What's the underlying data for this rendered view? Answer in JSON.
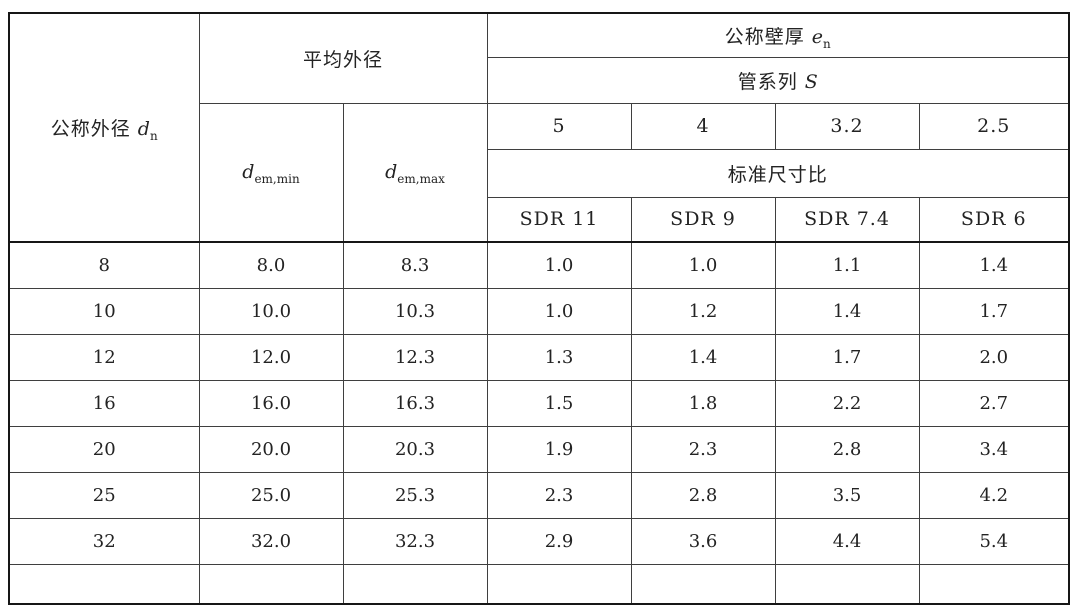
{
  "table": {
    "nominal_od": {
      "label": "公称外径",
      "var": "d",
      "sub": "n"
    },
    "mean_od_label": "平均外径",
    "d_em_min": {
      "var": "d",
      "sub": "em,min"
    },
    "d_em_max": {
      "var": "d",
      "sub": "em,max"
    },
    "wall_thickness": {
      "label": "公称壁厚",
      "var": "e",
      "sub": "n"
    },
    "pipe_series": {
      "label": "管系列",
      "var": "S"
    },
    "series_values": [
      "5",
      "4",
      "3.2",
      "2.5"
    ],
    "sdr_label": "标准尺寸比",
    "sdr_columns": [
      "SDR 11",
      "SDR 9",
      "SDR 7.4",
      "SDR 6"
    ],
    "rows": [
      [
        "8",
        "8.0",
        "8.3",
        "1.0",
        "1.0",
        "1.1",
        "1.4"
      ],
      [
        "10",
        "10.0",
        "10.3",
        "1.0",
        "1.2",
        "1.4",
        "1.7"
      ],
      [
        "12",
        "12.0",
        "12.3",
        "1.3",
        "1.4",
        "1.7",
        "2.0"
      ],
      [
        "16",
        "16.0",
        "16.3",
        "1.5",
        "1.8",
        "2.2",
        "2.7"
      ],
      [
        "20",
        "20.0",
        "20.3",
        "1.9",
        "2.3",
        "2.8",
        "3.4"
      ],
      [
        "25",
        "25.0",
        "25.3",
        "2.3",
        "2.8",
        "3.5",
        "4.2"
      ],
      [
        "32",
        "32.0",
        "32.3",
        "2.9",
        "3.6",
        "4.4",
        "5.4"
      ]
    ]
  },
  "colors": {
    "background": "#ffffff",
    "text": "#232323",
    "grid_line": "#3f3f3f",
    "frame_line": "#161616"
  }
}
